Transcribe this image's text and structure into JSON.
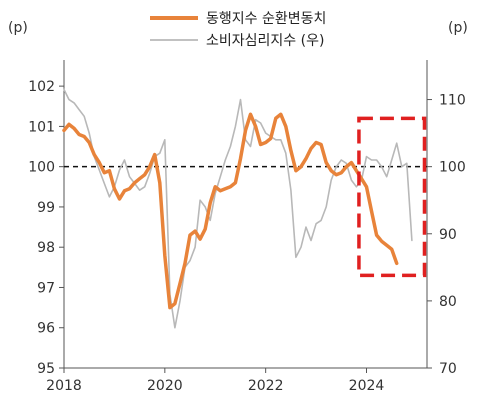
{
  "chart_data": {
    "type": "line",
    "title": "",
    "left_axis": {
      "unit_label": "(p)",
      "ylim": [
        95,
        102.5
      ],
      "ticks": [
        95,
        96,
        97,
        98,
        99,
        100,
        101,
        102
      ]
    },
    "right_axis": {
      "unit_label": "(p)",
      "ylim": [
        70,
        115
      ],
      "ticks": [
        70,
        80,
        90,
        100,
        110
      ]
    },
    "x_axis": {
      "xlim": [
        2018,
        2025.2
      ],
      "ticks": [
        2018,
        2020,
        2022,
        2024
      ]
    },
    "reference_line": {
      "axis": "left",
      "value": 100,
      "style": "dashed"
    },
    "highlight_box": {
      "x_range": [
        2023.85,
        2025.15
      ],
      "left_y_range": [
        97.3,
        101.2
      ],
      "style": "red-dashed"
    },
    "series": [
      {
        "name": "동행지수 순환변동치",
        "axis": "left",
        "color": "#e8833a",
        "x": [
          2018.0,
          2018.1,
          2018.2,
          2018.3,
          2018.4,
          2018.5,
          2018.6,
          2018.7,
          2018.8,
          2018.9,
          2019.0,
          2019.1,
          2019.2,
          2019.3,
          2019.4,
          2019.5,
          2019.6,
          2019.7,
          2019.8,
          2019.9,
          2020.0,
          2020.1,
          2020.2,
          2020.3,
          2020.4,
          2020.5,
          2020.6,
          2020.7,
          2020.8,
          2020.9,
          2021.0,
          2021.1,
          2021.2,
          2021.3,
          2021.4,
          2021.5,
          2021.6,
          2021.7,
          2021.8,
          2021.9,
          2022.0,
          2022.1,
          2022.2,
          2022.3,
          2022.4,
          2022.5,
          2022.6,
          2022.7,
          2022.8,
          2022.9,
          2023.0,
          2023.1,
          2023.2,
          2023.3,
          2023.4,
          2023.5,
          2023.6,
          2023.7,
          2023.8,
          2023.9,
          2024.0,
          2024.1,
          2024.2,
          2024.3,
          2024.4,
          2024.5,
          2024.6,
          2024.7,
          2024.8,
          2024.9
        ],
        "values": [
          100.9,
          101.05,
          100.95,
          100.8,
          100.75,
          100.6,
          100.3,
          100.1,
          99.85,
          99.9,
          99.45,
          99.2,
          99.4,
          99.45,
          99.6,
          99.7,
          99.8,
          100.0,
          100.3,
          99.6,
          97.8,
          96.5,
          96.6,
          97.1,
          97.6,
          98.3,
          98.4,
          98.2,
          98.45,
          99.1,
          99.5,
          99.4,
          99.45,
          99.5,
          99.6,
          100.2,
          100.9,
          101.3,
          101.0,
          100.55,
          100.6,
          100.7,
          101.2,
          101.3,
          101.0,
          100.4,
          99.9,
          100.0,
          100.2,
          100.45,
          100.6,
          100.55,
          100.1,
          99.9,
          99.8,
          99.85,
          100.0,
          100.1,
          99.9,
          99.7,
          99.5,
          98.9,
          98.3,
          98.15,
          98.05,
          97.95,
          97.6,
          null,
          null,
          null
        ]
      },
      {
        "name": "소비자심리지수 (우)",
        "axis": "right",
        "color": "#b8b8b8",
        "x": [
          2018.0,
          2018.1,
          2018.2,
          2018.3,
          2018.4,
          2018.5,
          2018.6,
          2018.7,
          2018.8,
          2018.9,
          2019.0,
          2019.1,
          2019.2,
          2019.3,
          2019.4,
          2019.5,
          2019.6,
          2019.7,
          2019.8,
          2019.9,
          2020.0,
          2020.1,
          2020.2,
          2020.3,
          2020.4,
          2020.5,
          2020.6,
          2020.7,
          2020.8,
          2020.9,
          2021.0,
          2021.1,
          2021.2,
          2021.3,
          2021.4,
          2021.5,
          2021.6,
          2021.7,
          2021.8,
          2021.9,
          2022.0,
          2022.1,
          2022.2,
          2022.3,
          2022.4,
          2022.5,
          2022.6,
          2022.7,
          2022.8,
          2022.9,
          2023.0,
          2023.1,
          2023.2,
          2023.3,
          2023.4,
          2023.5,
          2023.6,
          2023.7,
          2023.8,
          2023.9,
          2024.0,
          2024.1,
          2024.2,
          2024.3,
          2024.4,
          2024.5,
          2024.6,
          2024.7,
          2024.8,
          2024.9
        ],
        "values": [
          111.5,
          110.0,
          109.5,
          108.5,
          107.5,
          105.0,
          101.5,
          99.5,
          97.5,
          95.5,
          97.0,
          99.5,
          101.0,
          98.5,
          97.5,
          96.5,
          97.0,
          99.0,
          101.5,
          102.0,
          104.0,
          81.0,
          76.0,
          80.0,
          85.0,
          86.0,
          88.0,
          95.0,
          94.0,
          92.0,
          96.0,
          98.5,
          101.0,
          103.0,
          106.0,
          110.0,
          104.0,
          103.0,
          107.0,
          106.5,
          105.0,
          104.5,
          104.0,
          104.0,
          102.0,
          96.5,
          86.5,
          88.0,
          91.0,
          89.0,
          91.5,
          92.0,
          94.0,
          98.0,
          100.0,
          101.0,
          100.5,
          98.0,
          97.0,
          98.0,
          101.5,
          101.0,
          101.0,
          100.0,
          98.5,
          101.0,
          103.5,
          100.0,
          100.5,
          89.0
        ]
      }
    ],
    "legend": {
      "position": "top-center"
    }
  }
}
